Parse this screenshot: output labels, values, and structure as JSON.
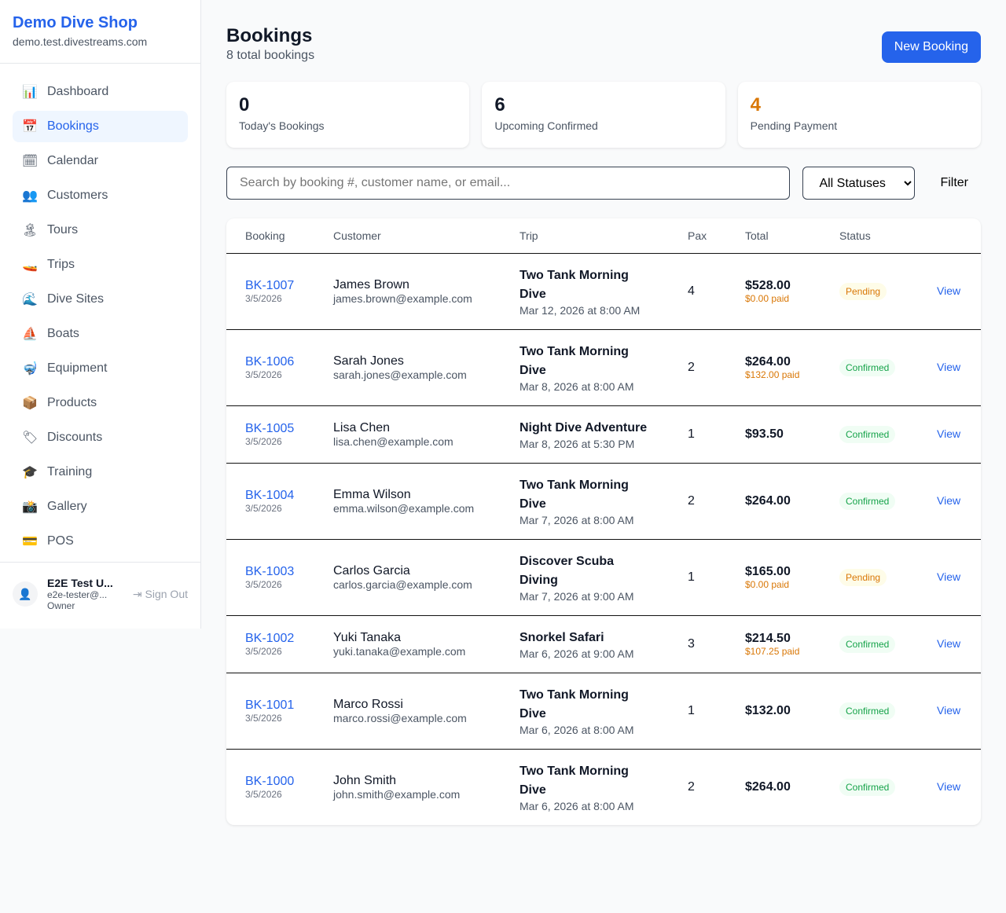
{
  "sidebar": {
    "shop_name": "Demo Dive Shop",
    "domain": "demo.test.divestreams.com",
    "items": [
      {
        "label": "Dashboard",
        "icon": "📊"
      },
      {
        "label": "Bookings",
        "icon": "📅"
      },
      {
        "label": "Calendar",
        "icon": "🗓"
      },
      {
        "label": "Customers",
        "icon": "👥"
      },
      {
        "label": "Tours",
        "icon": "🏝"
      },
      {
        "label": "Trips",
        "icon": "🚤"
      },
      {
        "label": "Dive Sites",
        "icon": "🌊"
      },
      {
        "label": "Boats",
        "icon": "⛵"
      },
      {
        "label": "Equipment",
        "icon": "🤿"
      },
      {
        "label": "Products",
        "icon": "📦"
      },
      {
        "label": "Discounts",
        "icon": "🏷"
      },
      {
        "label": "Training",
        "icon": "🎓"
      },
      {
        "label": "Gallery",
        "icon": "📸"
      },
      {
        "label": "POS",
        "icon": "💳"
      }
    ],
    "active": "Bookings",
    "user": {
      "name": "E2E Test U...",
      "email": "e2e-tester@...",
      "role": "Owner",
      "sign_out": "Sign Out"
    }
  },
  "header": {
    "title": "Bookings",
    "subtitle": "8 total bookings",
    "new_button": "New Booking"
  },
  "stats": [
    {
      "value": "0",
      "label": "Today's Bookings",
      "color": "#111827"
    },
    {
      "value": "6",
      "label": "Upcoming Confirmed",
      "color": "#111827"
    },
    {
      "value": "4",
      "label": "Pending Payment",
      "color": "#d97706"
    }
  ],
  "filters": {
    "search_placeholder": "Search by booking #, customer name, or email...",
    "status_value": "All Statuses",
    "filter_label": "Filter"
  },
  "table": {
    "headers": [
      "Booking",
      "Customer",
      "Trip",
      "Pax",
      "Total",
      "Status",
      ""
    ],
    "rows": [
      {
        "id": "BK-1007",
        "date": "3/5/2026",
        "name": "James Brown",
        "email": "james.brown@example.com",
        "trip": "Two Tank Morning Dive",
        "trip_date": "Mar 12, 2026 at 8:00 AM",
        "pax": "4",
        "total": "$528.00",
        "paid": "$0.00 paid",
        "status": "Pending",
        "action": "View"
      },
      {
        "id": "BK-1006",
        "date": "3/5/2026",
        "name": "Sarah Jones",
        "email": "sarah.jones@example.com",
        "trip": "Two Tank Morning Dive",
        "trip_date": "Mar 8, 2026 at 8:00 AM",
        "pax": "2",
        "total": "$264.00",
        "paid": "$132.00 paid",
        "status": "Confirmed",
        "action": "View"
      },
      {
        "id": "BK-1005",
        "date": "3/5/2026",
        "name": "Lisa Chen",
        "email": "lisa.chen@example.com",
        "trip": "Night Dive Adventure",
        "trip_date": "Mar 8, 2026 at 5:30 PM",
        "pax": "1",
        "total": "$93.50",
        "paid": null,
        "status": "Confirmed",
        "action": "View"
      },
      {
        "id": "BK-1004",
        "date": "3/5/2026",
        "name": "Emma Wilson",
        "email": "emma.wilson@example.com",
        "trip": "Two Tank Morning Dive",
        "trip_date": "Mar 7, 2026 at 8:00 AM",
        "pax": "2",
        "total": "$264.00",
        "paid": null,
        "status": "Confirmed",
        "action": "View"
      },
      {
        "id": "BK-1003",
        "date": "3/5/2026",
        "name": "Carlos Garcia",
        "email": "carlos.garcia@example.com",
        "trip": "Discover Scuba Diving",
        "trip_date": "Mar 7, 2026 at 9:00 AM",
        "pax": "1",
        "total": "$165.00",
        "paid": "$0.00 paid",
        "status": "Pending",
        "action": "View"
      },
      {
        "id": "BK-1002",
        "date": "3/5/2026",
        "name": "Yuki Tanaka",
        "email": "yuki.tanaka@example.com",
        "trip": "Snorkel Safari",
        "trip_date": "Mar 6, 2026 at 9:00 AM",
        "pax": "3",
        "total": "$214.50",
        "paid": "$107.25 paid",
        "status": "Confirmed",
        "action": "View"
      },
      {
        "id": "BK-1001",
        "date": "3/5/2026",
        "name": "Marco Rossi",
        "email": "marco.rossi@example.com",
        "trip": "Two Tank Morning Dive",
        "trip_date": "Mar 6, 2026 at 8:00 AM",
        "pax": "1",
        "total": "$132.00",
        "paid": null,
        "status": "Confirmed",
        "action": "View"
      },
      {
        "id": "BK-1000",
        "date": "3/5/2026",
        "name": "John Smith",
        "email": "john.smith@example.com",
        "trip": "Two Tank Morning Dive",
        "trip_date": "Mar 6, 2026 at 8:00 AM",
        "pax": "2",
        "total": "$264.00",
        "paid": null,
        "status": "Confirmed",
        "action": "View"
      }
    ]
  }
}
